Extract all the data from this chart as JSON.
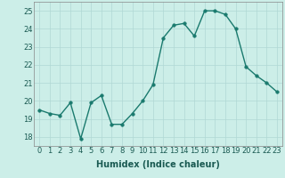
{
  "x": [
    0,
    1,
    2,
    3,
    4,
    5,
    6,
    7,
    8,
    9,
    10,
    11,
    12,
    13,
    14,
    15,
    16,
    17,
    18,
    19,
    20,
    21,
    22,
    23
  ],
  "y": [
    19.5,
    19.3,
    19.2,
    19.9,
    17.9,
    19.9,
    20.3,
    18.7,
    18.7,
    19.3,
    20.0,
    20.9,
    23.5,
    24.2,
    24.3,
    23.6,
    25.0,
    25.0,
    24.8,
    24.0,
    21.9,
    21.4,
    21.0,
    20.5
  ],
  "line_color": "#1a7a6e",
  "marker_color": "#1a7a6e",
  "bg_color": "#cceee8",
  "grid_color": "#b0d8d4",
  "xlabel": "Humidex (Indice chaleur)",
  "ylim": [
    17.5,
    25.5
  ],
  "xlim": [
    -0.5,
    23.5
  ],
  "yticks": [
    18,
    19,
    20,
    21,
    22,
    23,
    24,
    25
  ],
  "xticks": [
    0,
    1,
    2,
    3,
    4,
    5,
    6,
    7,
    8,
    9,
    10,
    11,
    12,
    13,
    14,
    15,
    16,
    17,
    18,
    19,
    20,
    21,
    22,
    23
  ],
  "xlabel_fontsize": 7,
  "tick_fontsize": 6,
  "line_width": 1.0,
  "marker_size": 2.5
}
